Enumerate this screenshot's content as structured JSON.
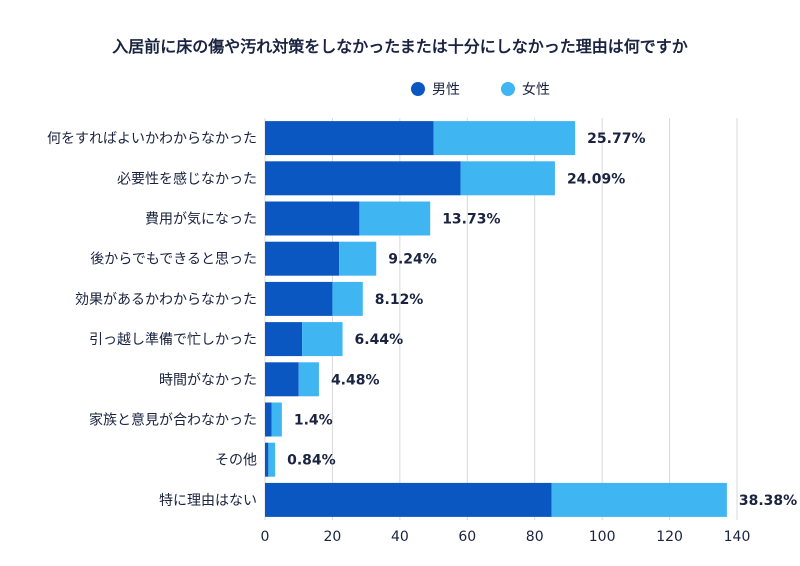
{
  "chart_data": {
    "type": "bar",
    "orientation": "horizontal",
    "stacked": true,
    "title": "入居前に床の傷や汚れ対策をしなかったまたは十分にしなかった理由は何ですか",
    "categories": [
      "何をすればよいかわからなかった",
      "必要性を感じなかった",
      "費用が気になった",
      "後からでもできると思った",
      "効果があるかわからなかった",
      "引っ越し準備で忙しかった",
      "時間がなかった",
      "家族と意見が合わなかった",
      "その他",
      "特に理由はない"
    ],
    "series": [
      {
        "name": "男性",
        "color": "#0a57c2",
        "values": [
          50,
          58,
          28,
          22,
          20,
          11,
          10,
          2,
          1,
          85
        ]
      },
      {
        "name": "女性",
        "color": "#3fb6f2",
        "values": [
          42,
          28,
          21,
          11,
          9,
          12,
          6,
          3,
          2,
          52
        ]
      }
    ],
    "data_labels": [
      "25.77%",
      "24.09%",
      "13.73%",
      "9.24%",
      "8.12%",
      "6.44%",
      "4.48%",
      "1.4%",
      "0.84%",
      "38.38%"
    ],
    "xlim": [
      0,
      140
    ],
    "xticks": [
      0,
      20,
      40,
      60,
      80,
      100,
      120,
      140
    ],
    "grid": true,
    "legend_position": "top-right",
    "xlabel": "",
    "ylabel": ""
  }
}
